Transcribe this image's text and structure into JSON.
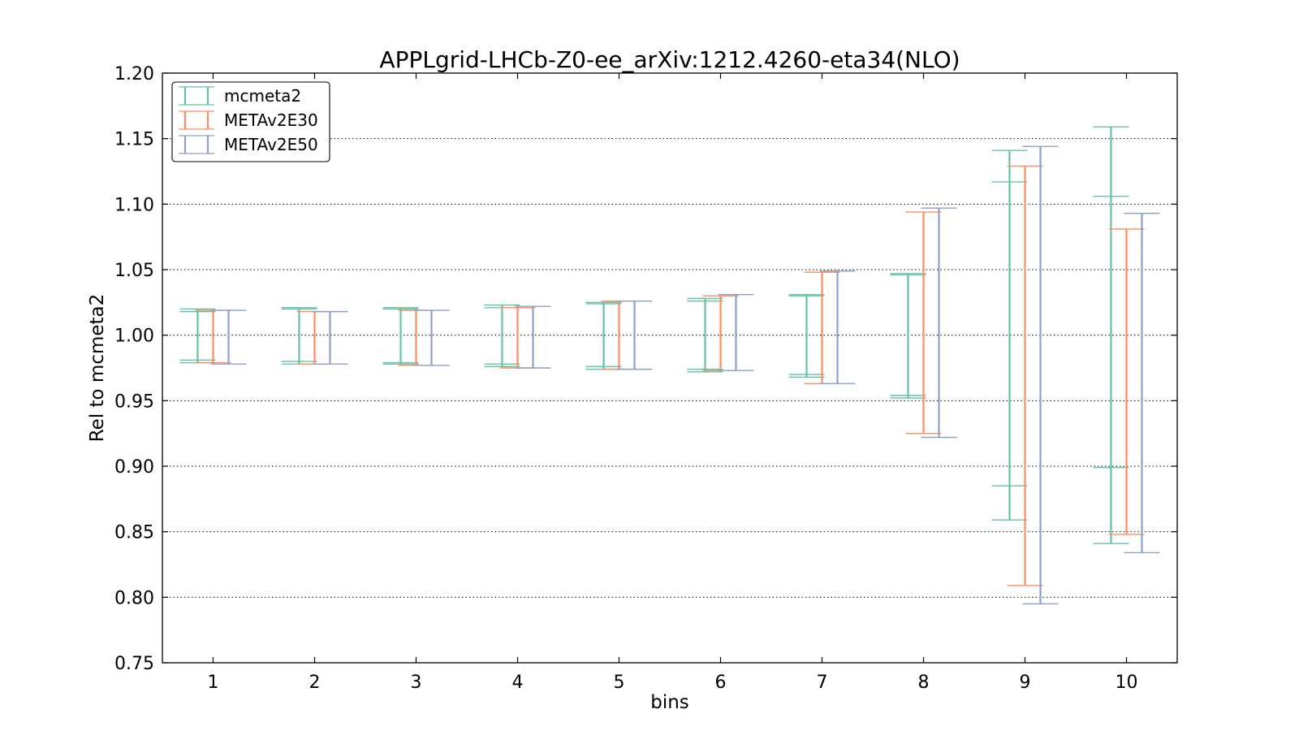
{
  "chart_data": {
    "type": "errorbar",
    "title": "APPLgrid-LHCb-Z0-ee_arXiv:1212.4260-eta34(NLO)",
    "xlabel": "bins",
    "ylabel": "Rel to mcmeta2",
    "categories": [
      "1",
      "2",
      "3",
      "4",
      "5",
      "6",
      "7",
      "8",
      "9",
      "10"
    ],
    "ylim": [
      0.75,
      1.2
    ],
    "yticks": [
      "0.75",
      "0.80",
      "0.85",
      "0.90",
      "0.95",
      "1.00",
      "1.05",
      "1.10",
      "1.15",
      "1.20"
    ],
    "grid": "horizontal dotted",
    "legend_position": "top-left",
    "series": [
      {
        "name": "mcmeta2",
        "color": "#66c2a5",
        "ranges": [
          [
            0.979,
            1.02
          ],
          [
            0.978,
            1.021
          ],
          [
            0.978,
            1.021
          ],
          [
            0.976,
            1.023
          ],
          [
            0.974,
            1.025
          ],
          [
            0.972,
            1.028
          ],
          [
            0.968,
            1.031
          ],
          [
            0.952,
            1.047
          ],
          [
            0.859,
            1.141
          ],
          [
            0.841,
            1.159
          ]
        ],
        "inner_ranges": [
          [
            0.981,
            1.018
          ],
          [
            0.98,
            1.02
          ],
          [
            0.979,
            1.02
          ],
          [
            0.978,
            1.021
          ],
          [
            0.976,
            1.024
          ],
          [
            0.974,
            1.026
          ],
          [
            0.97,
            1.03
          ],
          [
            0.954,
            1.046
          ],
          [
            0.885,
            1.117
          ],
          [
            0.899,
            1.106
          ]
        ]
      },
      {
        "name": "METAv2E30",
        "color": "#fc8d62",
        "ranges": [
          [
            0.979,
            1.019
          ],
          [
            0.978,
            1.018
          ],
          [
            0.977,
            1.019
          ],
          [
            0.975,
            1.021
          ],
          [
            0.974,
            1.026
          ],
          [
            0.973,
            1.03
          ],
          [
            0.963,
            1.048
          ],
          [
            0.925,
            1.094
          ],
          [
            0.809,
            1.129
          ],
          [
            0.848,
            1.081
          ]
        ]
      },
      {
        "name": "METAv2E50",
        "color": "#8da0cb",
        "ranges": [
          [
            0.978,
            1.019
          ],
          [
            0.978,
            1.018
          ],
          [
            0.977,
            1.019
          ],
          [
            0.975,
            1.022
          ],
          [
            0.974,
            1.026
          ],
          [
            0.973,
            1.031
          ],
          [
            0.963,
            1.049
          ],
          [
            0.922,
            1.097
          ],
          [
            0.795,
            1.144
          ],
          [
            0.834,
            1.093
          ]
        ]
      }
    ]
  }
}
